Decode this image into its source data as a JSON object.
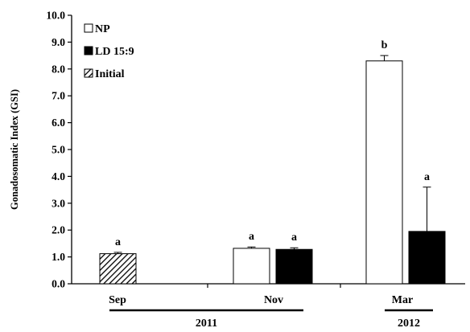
{
  "chart_data": {
    "type": "bar",
    "ylabel": "Gonadosomatic Index (GSI)",
    "ylim": [
      0,
      10
    ],
    "yticks": [
      "0.0",
      "1.0",
      "2.0",
      "3.0",
      "4.0",
      "5.0",
      "6.0",
      "7.0",
      "8.0",
      "9.0",
      "10.0"
    ],
    "grid": false,
    "legend": {
      "placement": "top-left",
      "entries": [
        {
          "series": "NP",
          "label": "NP"
        },
        {
          "series": "LD",
          "label": "LD 15:9"
        },
        {
          "series": "Initial",
          "label": "Initial"
        }
      ]
    },
    "categories": [
      "Sep",
      "Nov",
      "Mar"
    ],
    "years": [
      {
        "label": "2011",
        "categories": [
          "Sep",
          "Nov"
        ]
      },
      {
        "label": "2012",
        "categories": [
          "Mar"
        ]
      }
    ],
    "bars": [
      {
        "category": "Sep",
        "series": "Initial",
        "value": 1.12,
        "error": 0.05,
        "letter": "a"
      },
      {
        "category": "Nov",
        "series": "NP",
        "value": 1.32,
        "error": 0.05,
        "letter": "a"
      },
      {
        "category": "Nov",
        "series": "LD",
        "value": 1.28,
        "error": 0.06,
        "letter": "a"
      },
      {
        "category": "Mar",
        "series": "NP",
        "value": 8.3,
        "error": 0.2,
        "letter": "b"
      },
      {
        "category": "Mar",
        "series": "LD",
        "value": 1.95,
        "error": 1.65,
        "letter": "a"
      }
    ],
    "series_styles": {
      "NP": {
        "fill": "#ffffff",
        "stroke": "#000000"
      },
      "LD": {
        "fill": "#000000",
        "stroke": "#000000"
      },
      "Initial": {
        "fill": "hatched",
        "stroke": "#000000"
      }
    }
  }
}
